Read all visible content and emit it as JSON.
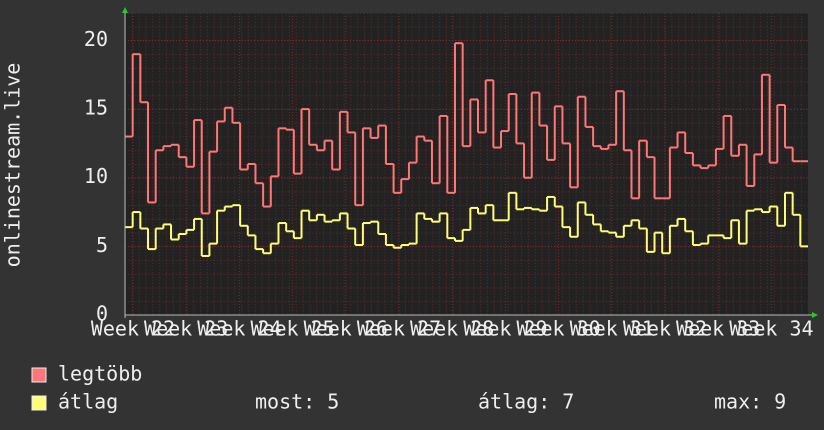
{
  "chart_data": {
    "type": "step-line",
    "y_label": "onlinestream.live",
    "ylim": [
      0,
      22
    ],
    "yticks": [
      0,
      5,
      10,
      15,
      20
    ],
    "grid": true,
    "xticks": [
      "Week 22",
      "Week 23",
      "Week 24",
      "Week 25",
      "Week 26",
      "Week 27",
      "Week 28",
      "Week 29",
      "Week 30",
      "Week 31",
      "Week 32",
      "Week 33",
      "Week 34"
    ],
    "series": [
      {
        "name": "legtöbb",
        "color": "#ff7777",
        "values": [
          13,
          19,
          15.5,
          8.2,
          12,
          12.3,
          12.4,
          11.5,
          10.8,
          14.2,
          7.4,
          11.9,
          14.1,
          15.1,
          14,
          10.6,
          11,
          9.6,
          7.9,
          10.1,
          13.6,
          13.5,
          10.3,
          15,
          12.4,
          12,
          12.7,
          10.6,
          14.8,
          13.3,
          8,
          13.6,
          12.9,
          13.8,
          11,
          8.9,
          9.9,
          11.1,
          13,
          12.7,
          9.6,
          14.5,
          8.9,
          19.8,
          12.3,
          15.7,
          13.3,
          17.1,
          12.2,
          13.4,
          16.1,
          12.5,
          10,
          16.2,
          13.8,
          11.3,
          15.2,
          12.5,
          9.3,
          15.9,
          13.7,
          12.3,
          12.1,
          12.4,
          16.3,
          12,
          8.5,
          12.7,
          11.5,
          8.5,
          8.5,
          12.2,
          13.3,
          11.8,
          10.9,
          10.7,
          10.9,
          12.1,
          14.5,
          11.6,
          12.4,
          9.4,
          11.7,
          17.5,
          11.1,
          15.3,
          12.2,
          11.2,
          11.2
        ]
      },
      {
        "name": "átlag",
        "color": "#ffff77",
        "values": [
          6.4,
          7.5,
          6.3,
          4.8,
          6.3,
          6.6,
          5.5,
          5.9,
          6.2,
          7,
          4.3,
          5.2,
          7.6,
          7.9,
          8,
          6.5,
          5.8,
          4.8,
          4.5,
          5.2,
          6.7,
          6.1,
          5.6,
          7.6,
          6.9,
          7.3,
          6.8,
          6.9,
          7.4,
          6.3,
          5.1,
          6.7,
          6.8,
          5.9,
          5.1,
          4.9,
          5.1,
          5.2,
          7.4,
          7,
          6.8,
          7.4,
          5.6,
          5.4,
          6.2,
          7.8,
          7.4,
          8,
          6.9,
          6.9,
          8.9,
          7.7,
          7.8,
          7.7,
          7.6,
          8.6,
          7.9,
          6.4,
          5.7,
          8.2,
          7.3,
          6.6,
          6.1,
          6,
          5.7,
          6.5,
          6.9,
          6.3,
          4.6,
          6,
          4.5,
          6.5,
          7,
          6.1,
          5.1,
          5.2,
          5.8,
          5.8,
          5.6,
          6.9,
          5.2,
          7.6,
          7.7,
          7.5,
          7.9,
          6.5,
          8.9,
          7.3,
          5
        ]
      }
    ],
    "stats": [
      {
        "label": "most:",
        "value": 5
      },
      {
        "label": "átlag:",
        "value": 7
      },
      {
        "label": "max:",
        "value": 9
      }
    ]
  }
}
